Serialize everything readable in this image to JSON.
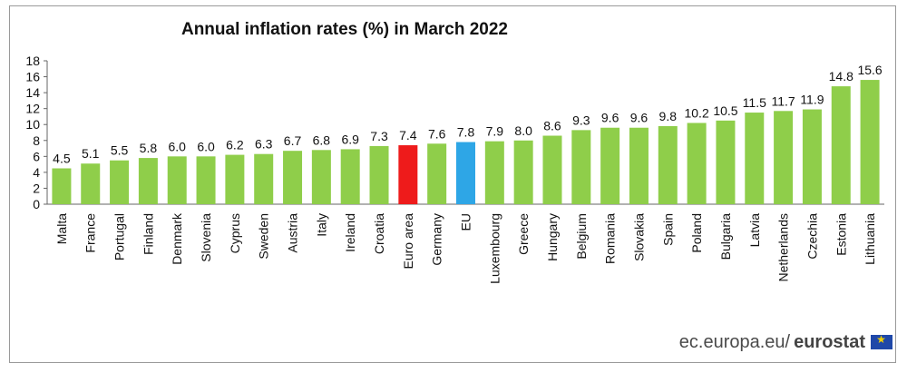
{
  "chart_data": {
    "type": "bar",
    "title": "Annual inflation rates (%)  in March 2022",
    "xlabel": "",
    "ylabel": "",
    "ylim": [
      0,
      18
    ],
    "yticks": [
      0,
      2,
      4,
      6,
      8,
      10,
      12,
      14,
      16,
      18
    ],
    "categories": [
      "Malta",
      "France",
      "Portugal",
      "Finland",
      "Denmark",
      "Slovenia",
      "Cyprus",
      "Sweden",
      "Austria",
      "Italy",
      "Ireland",
      "Croatia",
      "Euro area",
      "Germany",
      "EU",
      "Luxembourg",
      "Greece",
      "Hungary",
      "Belgium",
      "Romania",
      "Slovakia",
      "Spain",
      "Poland",
      "Bulgaria",
      "Latvia",
      "Netherlands",
      "Czechia",
      "Estonia",
      "Lithuania"
    ],
    "values": [
      4.5,
      5.1,
      5.5,
      5.8,
      6.0,
      6.0,
      6.2,
      6.3,
      6.7,
      6.8,
      6.9,
      7.3,
      7.4,
      7.6,
      7.8,
      7.9,
      8.0,
      8.6,
      9.3,
      9.6,
      9.6,
      9.8,
      10.2,
      10.5,
      11.5,
      11.7,
      11.9,
      14.8,
      15.6
    ],
    "value_labels": [
      "4.5",
      "5.1",
      "5.5",
      "5.8",
      "6.0",
      "6.0",
      "6.2",
      "6.3",
      "6.7",
      "6.8",
      "6.9",
      "7.3",
      "7.4",
      "7.6",
      "7.8",
      "7.9",
      "8.0",
      "8.6",
      "9.3",
      "9.6",
      "9.6",
      "9.8",
      "10.2",
      "10.5",
      "11.5",
      "11.7",
      "11.9",
      "14.8",
      "15.6"
    ],
    "colors": {
      "default": "#8fce4a",
      "Euro area": "#ee1b1b",
      "EU": "#2ea6e6"
    },
    "grid": false,
    "legend": "none"
  },
  "footer": {
    "site": "ec.europa.eu/",
    "brand": "eurostat"
  },
  "icons": {
    "flag": "eu-flag-icon"
  }
}
